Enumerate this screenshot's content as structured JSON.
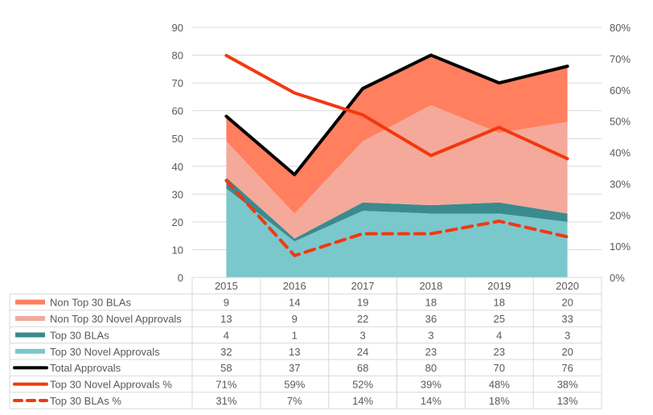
{
  "chart_data": {
    "type": "area",
    "title": "",
    "categories": [
      "2015",
      "2016",
      "2017",
      "2018",
      "2019",
      "2020"
    ],
    "left_axis": {
      "ylim": [
        0,
        90
      ],
      "ticks": [
        "0",
        "10",
        "20",
        "30",
        "40",
        "50",
        "60",
        "70",
        "80",
        "90"
      ]
    },
    "right_axis": {
      "ylim": [
        0,
        0.8
      ],
      "ticks": [
        "0%",
        "10%",
        "20%",
        "30%",
        "40%",
        "50%",
        "60%",
        "70%",
        "80%"
      ]
    },
    "grid": true,
    "legend_placement": "bottom data table",
    "stacked_areas": [
      {
        "name": "Top 30 Novel Approvals",
        "values": [
          32,
          13,
          24,
          23,
          23,
          20
        ],
        "color": "#7AC7CC"
      },
      {
        "name": "Top 30 BLAs",
        "values": [
          4,
          1,
          3,
          3,
          4,
          3
        ],
        "color": "#3A8B8E"
      },
      {
        "name": "Non Top 30 Novel Approvals",
        "values": [
          13,
          9,
          22,
          36,
          25,
          33
        ],
        "color": "#F4A99B"
      },
      {
        "name": "Non Top 30 BLAs",
        "values": [
          9,
          14,
          19,
          18,
          18,
          20
        ],
        "color": "#FF7F5E"
      }
    ],
    "lines": [
      {
        "name": "Total Approvals",
        "values": [
          58,
          37,
          68,
          80,
          70,
          76
        ],
        "axis": "left",
        "color": "#000000",
        "dash": false
      },
      {
        "name": "Top 30 Novel Approvals %",
        "values": [
          0.71,
          0.59,
          0.52,
          0.39,
          0.48,
          0.38
        ],
        "axis": "right",
        "color": "#F2380F",
        "dash": false
      },
      {
        "name": "Top 30 BLAs %",
        "values": [
          0.31,
          0.07,
          0.14,
          0.14,
          0.18,
          0.13
        ],
        "axis": "right",
        "color": "#F2380F",
        "dash": true
      }
    ],
    "table": {
      "rows": [
        {
          "label": "Non Top 30 BLAs",
          "key": "Non Top 30 BLAs",
          "cells": [
            "9",
            "14",
            "19",
            "18",
            "18",
            "20"
          ]
        },
        {
          "label": "Non Top 30 Novel Approvals",
          "key": "Non Top 30 Novel Approvals",
          "cells": [
            "13",
            "9",
            "22",
            "36",
            "25",
            "33"
          ]
        },
        {
          "label": "Top 30 BLAs",
          "key": "Top 30 BLAs",
          "cells": [
            "4",
            "1",
            "3",
            "3",
            "4",
            "3"
          ]
        },
        {
          "label": "Top 30 Novel Approvals",
          "key": "Top 30 Novel Approvals",
          "cells": [
            "32",
            "13",
            "24",
            "23",
            "23",
            "20"
          ]
        },
        {
          "label": "Total Approvals",
          "key": "Total Approvals",
          "cells": [
            "58",
            "37",
            "68",
            "80",
            "70",
            "76"
          ]
        },
        {
          "label": "Top 30 Novel Approvals %",
          "key": "Top 30 Novel Approvals %",
          "cells": [
            "71%",
            "59%",
            "52%",
            "39%",
            "48%",
            "38%"
          ]
        },
        {
          "label": "Top 30 BLAs %",
          "key": "Top 30 BLAs %",
          "cells": [
            "31%",
            "7%",
            "14%",
            "14%",
            "18%",
            "13%"
          ]
        }
      ]
    }
  }
}
